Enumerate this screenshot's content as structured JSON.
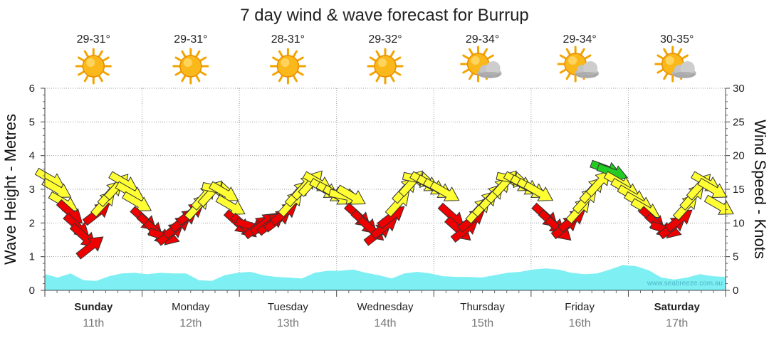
{
  "chart_data": {
    "type": "line",
    "title": "7 day wind & wave forecast for Burrup",
    "y_left": {
      "label": "Wave Height - Metres",
      "ticks": [
        "0",
        "1",
        "2",
        "3",
        "4",
        "5",
        "6"
      ],
      "range": [
        0,
        6
      ]
    },
    "y_right": {
      "label": "Wind Speed - Knots",
      "ticks": [
        "0",
        "5",
        "10",
        "15",
        "20",
        "25",
        "30"
      ],
      "range": [
        0,
        30
      ]
    },
    "grid": true,
    "days": [
      {
        "name": "Sunday",
        "date": "11th",
        "temp": "29-31°",
        "weather": "sunny",
        "bold": true
      },
      {
        "name": "Monday",
        "date": "12th",
        "temp": "29-31°",
        "weather": "sunny",
        "bold": false
      },
      {
        "name": "Tuesday",
        "date": "13th",
        "temp": "28-31°",
        "weather": "sunny",
        "bold": false
      },
      {
        "name": "Wednesday",
        "date": "14th",
        "temp": "29-32°",
        "weather": "sunny",
        "bold": false
      },
      {
        "name": "Thursday",
        "date": "15th",
        "temp": "29-34°",
        "weather": "partly-cloudy",
        "bold": false
      },
      {
        "name": "Friday",
        "date": "16th",
        "temp": "29-34°",
        "weather": "partly-cloudy",
        "bold": false
      },
      {
        "name": "Saturday",
        "date": "17th",
        "temp": "30-35°",
        "weather": "partly-cloudy",
        "bold": true
      }
    ],
    "series": [
      {
        "name": "Wave height",
        "unit": "m",
        "color": "#7ef0f4",
        "values": [
          0.48,
          0.38,
          0.5,
          0.3,
          0.28,
          0.42,
          0.5,
          0.52,
          0.48,
          0.52,
          0.5,
          0.5,
          0.3,
          0.28,
          0.45,
          0.52,
          0.55,
          0.45,
          0.4,
          0.38,
          0.35,
          0.52,
          0.58,
          0.58,
          0.62,
          0.52,
          0.45,
          0.35,
          0.5,
          0.55,
          0.5,
          0.42,
          0.4,
          0.4,
          0.38,
          0.45,
          0.52,
          0.55,
          0.62,
          0.65,
          0.62,
          0.52,
          0.48,
          0.5,
          0.62,
          0.75,
          0.72,
          0.6,
          0.38,
          0.32,
          0.38,
          0.48,
          0.42,
          0.4
        ]
      },
      {
        "name": "Wind speed",
        "unit": "knots",
        "values": [
          16.5,
          15.0,
          13.0,
          11.5,
          9.5,
          8.0,
          6.5,
          11.5,
          13.0,
          14.5,
          15.5,
          16.0,
          14.5,
          13.0,
          10.5,
          9.5,
          8.5,
          8.0,
          8.5,
          9.5,
          10.5,
          11.5,
          12.5,
          14.0,
          14.5,
          15.0,
          14.5,
          12.5,
          10.0,
          9.5,
          9.5,
          9.5,
          10.0,
          10.0,
          10.5,
          11.5,
          13.0,
          14.5,
          15.5,
          16.0,
          16.0,
          15.0,
          14.5,
          14.0,
          14.0,
          14.0,
          11.0,
          10.0,
          9.0,
          8.5,
          9.5,
          11.0,
          13.0,
          15.0,
          16.0,
          16.5,
          16.0,
          15.5,
          15.0,
          14.5,
          11.0,
          9.0,
          9.0,
          10.5,
          12.0,
          13.0,
          14.0,
          15.0,
          16.0,
          16.5,
          16.0,
          15.5,
          15.0,
          14.5,
          11.0,
          10.0,
          9.0,
          9.5,
          10.5,
          12.0,
          13.5,
          15.0,
          16.0,
          18.0,
          17.5,
          16.0,
          15.0,
          14.0,
          13.0,
          12.0,
          10.5,
          9.5,
          9.0,
          9.5,
          10.5,
          12.5,
          14.0,
          15.5,
          16.0,
          15.0,
          12.5
        ]
      }
    ],
    "wind_colour_scale": {
      "light": "#22cc22",
      "moderate": "#ffff33",
      "fresh": "#ee0000",
      "outline": "#333333"
    }
  },
  "watermark": "www.seabreeze.com.au"
}
